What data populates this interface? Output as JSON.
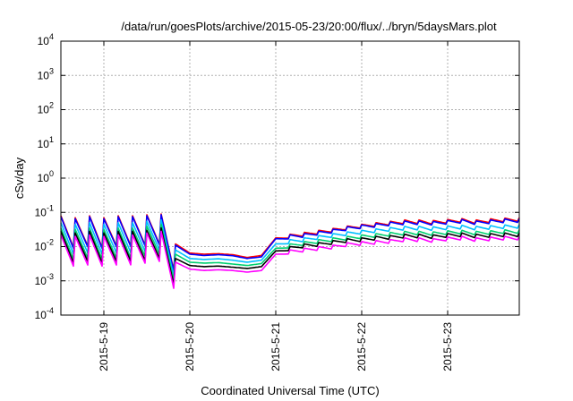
{
  "chart_data": {
    "type": "line",
    "title": "/data/run/goesPlots/archive/2015-05-23/20:00/flux/../bryn/5daysMars.plot",
    "xlabel": "Coordinated Universal Time (UTC)",
    "ylabel": "cSv/day",
    "yscale": "log",
    "ylim": [
      0.0001,
      10000
    ],
    "xlim": [
      "2015-05-18 12:00",
      "2015-05-23 20:00"
    ],
    "y_ticks": [
      {
        "value": 0.0001,
        "base": "10",
        "exp": "-4"
      },
      {
        "value": 0.001,
        "base": "10",
        "exp": "-3"
      },
      {
        "value": 0.01,
        "base": "10",
        "exp": "-2"
      },
      {
        "value": 0.1,
        "base": "10",
        "exp": "-1"
      },
      {
        "value": 1,
        "base": "10",
        "exp": "0"
      },
      {
        "value": 10,
        "base": "10",
        "exp": "1"
      },
      {
        "value": 100,
        "base": "10",
        "exp": "2"
      },
      {
        "value": 1000,
        "base": "10",
        "exp": "3"
      },
      {
        "value": 10000,
        "base": "10",
        "exp": "4"
      }
    ],
    "x_ticks": [
      "2015-5-19",
      "2015-5-20",
      "2015-5-21",
      "2015-5-22",
      "2015-5-23"
    ],
    "grid": true,
    "legend": "none",
    "x_hours": [
      0,
      4,
      8,
      12,
      16,
      20,
      24,
      28,
      32,
      36,
      40,
      44,
      48,
      52,
      56,
      60,
      64,
      68,
      72,
      76,
      80,
      84,
      88,
      92,
      96,
      100,
      104,
      108,
      112,
      116,
      120,
      124,
      128
    ],
    "series": [
      {
        "color": "#ff0000",
        "values": [
          0.08,
          0.07,
          0.08,
          0.07,
          0.08,
          0.08,
          0.085,
          0.09,
          0.012,
          0.0065,
          0.006,
          0.0062,
          0.0058,
          0.0048,
          0.0055,
          0.018,
          0.023,
          0.026,
          0.03,
          0.034,
          0.04,
          0.045,
          0.05,
          0.055,
          0.06,
          0.06,
          0.058,
          0.062,
          0.066,
          0.06,
          0.065,
          0.068,
          0.07
        ]
      },
      {
        "color": "#0000ff",
        "values": [
          0.075,
          0.065,
          0.075,
          0.065,
          0.075,
          0.075,
          0.08,
          0.085,
          0.011,
          0.006,
          0.0055,
          0.0058,
          0.0054,
          0.0045,
          0.005,
          0.017,
          0.022,
          0.024,
          0.028,
          0.032,
          0.038,
          0.043,
          0.047,
          0.052,
          0.056,
          0.056,
          0.054,
          0.058,
          0.062,
          0.056,
          0.06,
          0.064,
          0.065
        ]
      },
      {
        "color": "#00bfff",
        "values": [
          0.05,
          0.045,
          0.05,
          0.045,
          0.05,
          0.05,
          0.055,
          0.06,
          0.008,
          0.0045,
          0.0042,
          0.0044,
          0.004,
          0.0035,
          0.004,
          0.012,
          0.016,
          0.018,
          0.021,
          0.024,
          0.027,
          0.03,
          0.033,
          0.036,
          0.039,
          0.039,
          0.038,
          0.04,
          0.042,
          0.039,
          0.041,
          0.043,
          0.044
        ]
      },
      {
        "color": "#00d070",
        "values": [
          0.035,
          0.032,
          0.035,
          0.032,
          0.035,
          0.035,
          0.04,
          0.045,
          0.006,
          0.0035,
          0.0033,
          0.0034,
          0.0031,
          0.0028,
          0.0032,
          0.009,
          0.012,
          0.014,
          0.016,
          0.018,
          0.02,
          0.022,
          0.024,
          0.026,
          0.028,
          0.028,
          0.027,
          0.029,
          0.03,
          0.028,
          0.029,
          0.031,
          0.031
        ]
      },
      {
        "color": "#000000",
        "values": [
          0.028,
          0.025,
          0.028,
          0.025,
          0.028,
          0.028,
          0.03,
          0.035,
          0.0045,
          0.0028,
          0.0026,
          0.0027,
          0.0025,
          0.0023,
          0.0026,
          0.0075,
          0.01,
          0.012,
          0.013,
          0.015,
          0.017,
          0.018,
          0.02,
          0.021,
          0.023,
          0.023,
          0.022,
          0.024,
          0.025,
          0.023,
          0.024,
          0.025,
          0.025
        ]
      },
      {
        "color": "#ff00ff",
        "values": [
          0.022,
          0.02,
          0.022,
          0.02,
          0.022,
          0.022,
          0.025,
          0.028,
          0.0035,
          0.0022,
          0.002,
          0.0021,
          0.002,
          0.0018,
          0.002,
          0.006,
          0.008,
          0.009,
          0.01,
          0.011,
          0.013,
          0.014,
          0.015,
          0.016,
          0.018,
          0.018,
          0.017,
          0.019,
          0.02,
          0.018,
          0.019,
          0.02,
          0.02
        ]
      }
    ]
  }
}
